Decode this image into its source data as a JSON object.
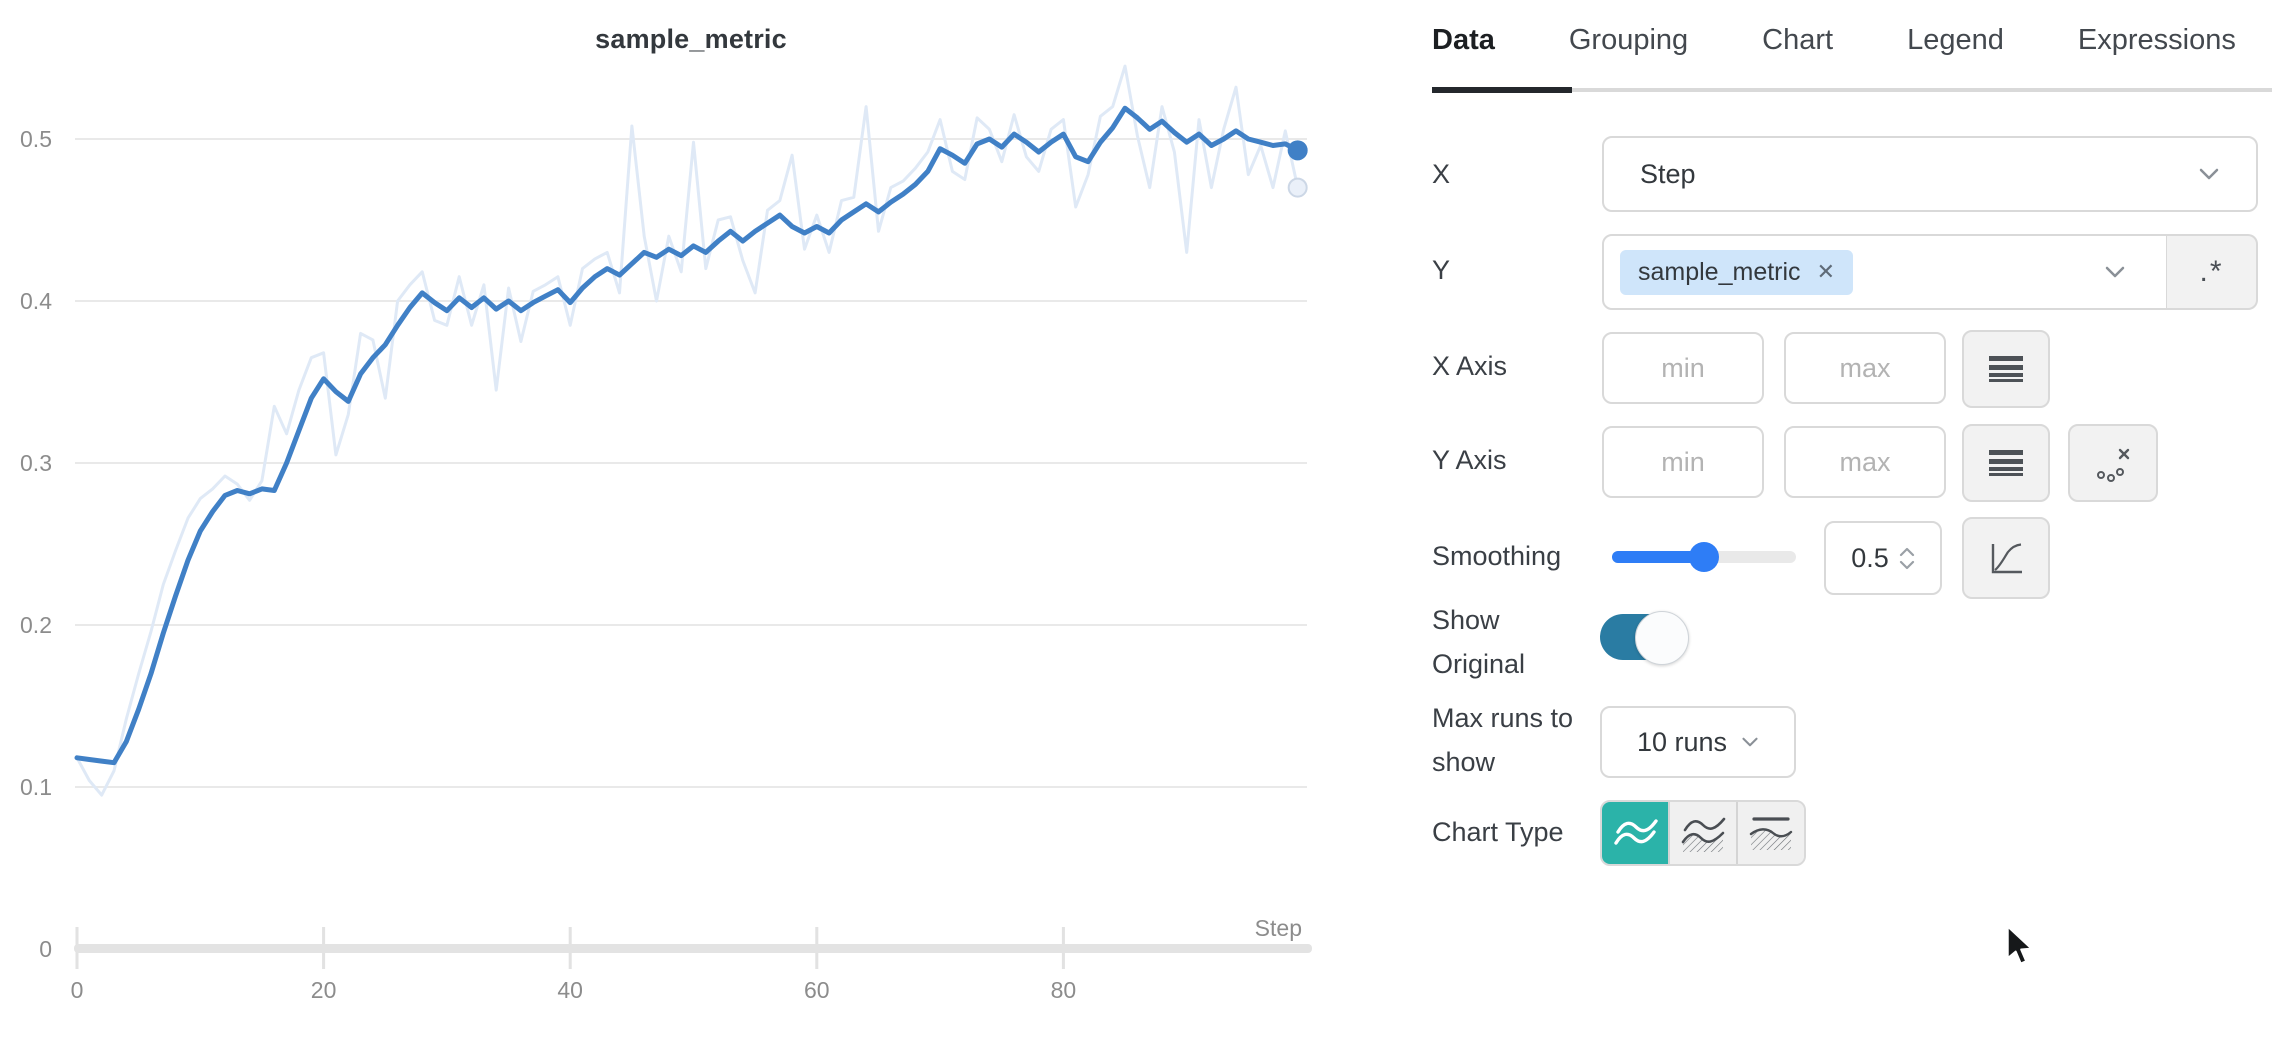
{
  "panel": {
    "tabs": [
      {
        "label": "Data",
        "active": true
      },
      {
        "label": "Grouping",
        "active": false
      },
      {
        "label": "Chart",
        "active": false
      },
      {
        "label": "Legend",
        "active": false
      },
      {
        "label": "Expressions",
        "active": false
      }
    ],
    "rows": {
      "x": {
        "label": "X",
        "value": "Step"
      },
      "y": {
        "label": "Y",
        "chip": "sample_metric",
        "chip_remove": "✕",
        "regex_button": ".*"
      },
      "x_axis": {
        "label": "X Axis",
        "min_placeholder": "min",
        "max_placeholder": "max"
      },
      "y_axis": {
        "label": "Y Axis",
        "min_placeholder": "min",
        "max_placeholder": "max"
      },
      "smoothing": {
        "label": "Smoothing",
        "value": "0.5"
      },
      "show_original": {
        "label": "Show Original",
        "on": true
      },
      "max_runs": {
        "label": "Max runs to show",
        "value": "10 runs"
      },
      "chart_type": {
        "label": "Chart Type",
        "options": [
          "line",
          "area",
          "min-max"
        ],
        "selected": "line"
      }
    }
  },
  "colors": {
    "accent_blue": "#2e7df6",
    "toggle_teal": "#2a7ca3",
    "selected_teal": "#2bb3a9",
    "chip_bg": "#cfe5fa",
    "line_blue": "#4080c6",
    "line_original": "#dfe9f6"
  },
  "chart_data": {
    "type": "line",
    "title": "sample_metric",
    "xlabel": "Step",
    "ylabel": "",
    "x_ticks": [
      0,
      20,
      40,
      60,
      80
    ],
    "y_ticks": [
      0,
      0.1,
      0.2,
      0.3,
      0.4,
      0.5
    ],
    "xlim": [
      0,
      99.6
    ],
    "ylim": [
      0,
      0.585
    ],
    "grid": "horizontal",
    "legend": "none",
    "smoothing": 0.5,
    "series": [
      {
        "name": "sample_metric (smoothed)",
        "color": "#4080c6",
        "width": 5,
        "values": [
          0.118,
          0.117,
          0.116,
          0.115,
          0.128,
          0.148,
          0.17,
          0.195,
          0.218,
          0.24,
          0.258,
          0.27,
          0.28,
          0.283,
          0.281,
          0.284,
          0.283,
          0.3,
          0.32,
          0.34,
          0.352,
          0.344,
          0.338,
          0.355,
          0.365,
          0.373,
          0.385,
          0.396,
          0.405,
          0.399,
          0.394,
          0.402,
          0.396,
          0.402,
          0.395,
          0.4,
          0.394,
          0.399,
          0.403,
          0.407,
          0.399,
          0.408,
          0.415,
          0.42,
          0.416,
          0.423,
          0.43,
          0.427,
          0.432,
          0.428,
          0.434,
          0.43,
          0.437,
          0.443,
          0.437,
          0.443,
          0.448,
          0.453,
          0.446,
          0.442,
          0.446,
          0.442,
          0.45,
          0.455,
          0.46,
          0.455,
          0.461,
          0.466,
          0.472,
          0.48,
          0.494,
          0.49,
          0.485,
          0.497,
          0.5,
          0.495,
          0.503,
          0.498,
          0.492,
          0.498,
          0.503,
          0.489,
          0.486,
          0.498,
          0.507,
          0.519,
          0.513,
          0.506,
          0.511,
          0.504,
          0.498,
          0.503,
          0.496,
          0.5,
          0.505,
          0.5,
          0.498,
          0.496,
          0.497,
          0.493
        ]
      },
      {
        "name": "sample_metric (original)",
        "color": "#dfe9f6",
        "width": 3,
        "values": [
          0.118,
          0.104,
          0.095,
          0.11,
          0.142,
          0.17,
          0.196,
          0.225,
          0.246,
          0.266,
          0.278,
          0.284,
          0.292,
          0.287,
          0.277,
          0.289,
          0.335,
          0.318,
          0.345,
          0.365,
          0.368,
          0.305,
          0.33,
          0.38,
          0.376,
          0.34,
          0.4,
          0.41,
          0.418,
          0.388,
          0.385,
          0.415,
          0.385,
          0.41,
          0.345,
          0.408,
          0.375,
          0.406,
          0.41,
          0.415,
          0.385,
          0.42,
          0.426,
          0.43,
          0.405,
          0.508,
          0.44,
          0.4,
          0.44,
          0.418,
          0.498,
          0.42,
          0.45,
          0.452,
          0.425,
          0.405,
          0.456,
          0.462,
          0.49,
          0.432,
          0.453,
          0.43,
          0.462,
          0.464,
          0.52,
          0.443,
          0.47,
          0.474,
          0.482,
          0.492,
          0.512,
          0.48,
          0.475,
          0.513,
          0.506,
          0.486,
          0.515,
          0.489,
          0.48,
          0.506,
          0.512,
          0.458,
          0.478,
          0.514,
          0.52,
          0.545,
          0.502,
          0.47,
          0.52,
          0.492,
          0.43,
          0.512,
          0.47,
          0.506,
          0.532,
          0.478,
          0.496,
          0.47,
          0.505,
          0.47
        ]
      }
    ]
  }
}
